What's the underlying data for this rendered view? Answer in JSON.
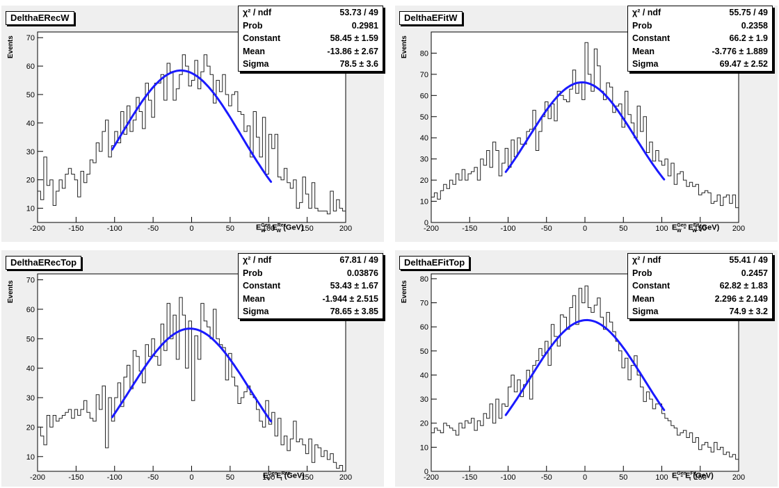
{
  "chart_data": [
    {
      "type": "histogram",
      "title": "DelthaERecW",
      "xlabel": "E_W^Gen - E_W^Rec (GeV)",
      "xlabel_main": "E",
      "xlabel_sup1": "Gen",
      "xlabel_sub1": "W",
      "xlabel_sup2": "Rec",
      "xlabel_sub2": "W",
      "xlabel_unit": "(GeV)",
      "ylabel": "Events",
      "xlim": [
        -200,
        200
      ],
      "ylim": [
        5,
        72
      ],
      "x_ticks": [
        "-200",
        "-150",
        "-100",
        "-50",
        "0",
        "50",
        "100",
        "150",
        "200"
      ],
      "y_ticks": [
        "10",
        "20",
        "30",
        "40",
        "50",
        "60",
        "70"
      ],
      "stats": [
        {
          "label": "χ² / ndf",
          "value": "53.73 / 49"
        },
        {
          "label": "Prob",
          "value": "0.2981"
        },
        {
          "label": "Constant",
          "value": "58.45 ± 1.59"
        },
        {
          "label": "Mean",
          "value": "-13.86 ± 2.67"
        },
        {
          "label": "Sigma",
          "value": "78.5 ± 3.6"
        }
      ],
      "fit": {
        "constant": 58.45,
        "mean": -13.86,
        "sigma": 78.5,
        "range": [
          -103,
          103
        ]
      },
      "bin_width": 4,
      "values": [
        16,
        13,
        28,
        18,
        20,
        11,
        16,
        20,
        17,
        22,
        24,
        22,
        20,
        14,
        23,
        19,
        22,
        27,
        26,
        33,
        30,
        37,
        41,
        28,
        32,
        37,
        33,
        44,
        36,
        46,
        37,
        41,
        49,
        44,
        38,
        54,
        48,
        42,
        54,
        54,
        57,
        48,
        61,
        58,
        48,
        52,
        57,
        64,
        60,
        53,
        55,
        62,
        52,
        58,
        64,
        60,
        57,
        47,
        55,
        51,
        57,
        50,
        46,
        50,
        51,
        44,
        43,
        37,
        39,
        28,
        44,
        35,
        28,
        42,
        22,
        36,
        31,
        36,
        21,
        20,
        24,
        19,
        17,
        20,
        10,
        12,
        21,
        15,
        10,
        19,
        10,
        9,
        9,
        9,
        8,
        16,
        9,
        13,
        10,
        9
      ]
    },
    {
      "type": "histogram",
      "title": "DelthaEFitW",
      "xlabel": "E_W^Gen - E_W^Fit (GeV)",
      "xlabel_main": "E",
      "xlabel_sup1": "Gen",
      "xlabel_sub1": "W",
      "xlabel_sup2": "Fit",
      "xlabel_sub2": "W",
      "xlabel_unit": "(GeV)",
      "ylabel": "Events",
      "xlim": [
        -200,
        200
      ],
      "ylim": [
        0,
        90
      ],
      "x_ticks": [
        "-200",
        "-150",
        "-100",
        "-50",
        "0",
        "50",
        "100",
        "150",
        "200"
      ],
      "y_ticks": [
        "0",
        "10",
        "20",
        "30",
        "40",
        "50",
        "60",
        "70",
        "80"
      ],
      "stats": [
        {
          "label": "χ² / ndf",
          "value": "55.75 / 49"
        },
        {
          "label": "Prob",
          "value": "0.2358"
        },
        {
          "label": "Constant",
          "value": "66.2 ± 1.9"
        },
        {
          "label": "Mean",
          "value": "-3.776 ± 1.889"
        },
        {
          "label": "Sigma",
          "value": "69.47 ± 2.52"
        }
      ],
      "fit": {
        "constant": 66.2,
        "mean": -3.776,
        "sigma": 69.47,
        "range": [
          -103,
          103
        ]
      },
      "bin_width": 4,
      "values": [
        12,
        14,
        11,
        15,
        18,
        16,
        20,
        18,
        23,
        20,
        25,
        20,
        23,
        24,
        26,
        20,
        30,
        27,
        34,
        26,
        38,
        34,
        22,
        28,
        35,
        26,
        39,
        31,
        40,
        37,
        37,
        43,
        44,
        53,
        34,
        43,
        50,
        57,
        49,
        56,
        48,
        62,
        60,
        58,
        57,
        63,
        72,
        61,
        66,
        58,
        85,
        70,
        62,
        82,
        74,
        62,
        58,
        66,
        64,
        52,
        55,
        56,
        45,
        62,
        51,
        47,
        40,
        55,
        43,
        50,
        33,
        38,
        29,
        34,
        29,
        27,
        30,
        22,
        28,
        18,
        23,
        24,
        20,
        17,
        19,
        17,
        18,
        13,
        14,
        15,
        14,
        9,
        10,
        13,
        8,
        12,
        13,
        9,
        13,
        7
      ]
    },
    {
      "type": "histogram",
      "title": "DelthaERecTop",
      "xlabel": "E_t^Gen - E_t^Rec (GeV)",
      "xlabel_main": "E",
      "xlabel_sup1": "Gen",
      "xlabel_sub1": "t",
      "xlabel_sup2": "Rec",
      "xlabel_sub2": "t",
      "xlabel_unit": "(GeV)",
      "ylabel": "Events",
      "xlim": [
        -200,
        200
      ],
      "ylim": [
        5,
        72
      ],
      "x_ticks": [
        "-200",
        "-150",
        "-100",
        "-50",
        "0",
        "50",
        "100",
        "150",
        "200"
      ],
      "y_ticks": [
        "10",
        "20",
        "30",
        "40",
        "50",
        "60",
        "70"
      ],
      "stats": [
        {
          "label": "χ² / ndf",
          "value": "67.81 / 49"
        },
        {
          "label": "Prob",
          "value": "0.03876"
        },
        {
          "label": "Constant",
          "value": "53.43 ± 1.67"
        },
        {
          "label": "Mean",
          "value": "-1.944 ± 2.515"
        },
        {
          "label": "Sigma",
          "value": "78.65 ± 3.85"
        }
      ],
      "fit": {
        "constant": 53.43,
        "mean": -1.944,
        "sigma": 78.65,
        "range": [
          -103,
          103
        ]
      },
      "bin_width": 4,
      "values": [
        20,
        17,
        14,
        24,
        20,
        24,
        22,
        23,
        24,
        25,
        26,
        23,
        26,
        24,
        26,
        29,
        25,
        23,
        22,
        31,
        26,
        34,
        13,
        30,
        22,
        30,
        35,
        27,
        37,
        41,
        33,
        46,
        44,
        39,
        35,
        48,
        44,
        50,
        44,
        41,
        55,
        46,
        62,
        50,
        58,
        43,
        64,
        58,
        40,
        56,
        29,
        51,
        43,
        62,
        56,
        54,
        50,
        60,
        50,
        48,
        47,
        36,
        45,
        37,
        34,
        28,
        30,
        32,
        34,
        31,
        30,
        26,
        22,
        20,
        29,
        21,
        25,
        17,
        23,
        14,
        17,
        12,
        16,
        22,
        15,
        16,
        14,
        11,
        16,
        8,
        14,
        13,
        10,
        12,
        9,
        11,
        8,
        6,
        7,
        5
      ]
    },
    {
      "type": "histogram",
      "title": "DelthaEFitTop",
      "xlabel": "E_t^Gen - E_t^Fit (GeV)",
      "xlabel_main": "E",
      "xlabel_sup1": "Gen",
      "xlabel_sub1": "t",
      "xlabel_sup2": "Fit",
      "xlabel_sub2": "t",
      "xlabel_unit": "(GeV)",
      "ylabel": "Events",
      "xlim": [
        -200,
        200
      ],
      "ylim": [
        0,
        82
      ],
      "x_ticks": [
        "-200",
        "-150",
        "-100",
        "-50",
        "0",
        "50",
        "100",
        "150",
        "200"
      ],
      "y_ticks": [
        "0",
        "10",
        "20",
        "30",
        "40",
        "50",
        "60",
        "70",
        "80"
      ],
      "stats": [
        {
          "label": "χ² / ndf",
          "value": "55.41 / 49"
        },
        {
          "label": "Prob",
          "value": "0.2457"
        },
        {
          "label": "Constant",
          "value": "62.82 ± 1.83"
        },
        {
          "label": "Mean",
          "value": "2.296 ± 2.149"
        },
        {
          "label": "Sigma",
          "value": "74.9 ± 3.2"
        }
      ],
      "fit": {
        "constant": 62.82,
        "mean": 2.296,
        "sigma": 74.9,
        "range": [
          -103,
          103
        ]
      },
      "bin_width": 4,
      "values": [
        16,
        18,
        17,
        16,
        20,
        19,
        18,
        17,
        15,
        20,
        18,
        21,
        20,
        22,
        17,
        21,
        19,
        24,
        22,
        28,
        20,
        30,
        22,
        28,
        27,
        35,
        40,
        33,
        38,
        31,
        36,
        42,
        30,
        44,
        46,
        51,
        48,
        54,
        44,
        61,
        56,
        52,
        65,
        64,
        59,
        68,
        73,
        61,
        76,
        70,
        77,
        68,
        66,
        69,
        72,
        64,
        59,
        66,
        62,
        58,
        54,
        50,
        43,
        47,
        38,
        44,
        48,
        40,
        35,
        29,
        33,
        30,
        26,
        28,
        28,
        24,
        22,
        21,
        19,
        18,
        15,
        16,
        17,
        14,
        16,
        12,
        14,
        9,
        11,
        12,
        10,
        8,
        12,
        9,
        10,
        7,
        8,
        6,
        7,
        5
      ]
    }
  ]
}
